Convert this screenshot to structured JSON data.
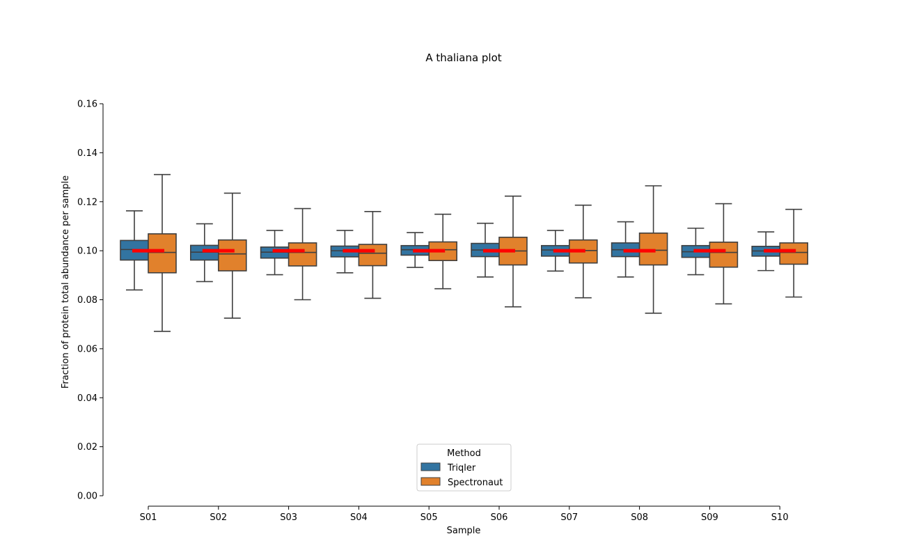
{
  "chart_data": {
    "type": "box",
    "title": "A thaliana plot",
    "xlabel": "Sample",
    "ylabel": "Fraction of protein total abundance per sample",
    "ylim": [
      0,
      0.16
    ],
    "yticks": [
      "0.00",
      "0.02",
      "0.04",
      "0.06",
      "0.08",
      "0.10",
      "0.12",
      "0.14",
      "0.16"
    ],
    "categories": [
      "S01",
      "S02",
      "S03",
      "S04",
      "S05",
      "S06",
      "S07",
      "S08",
      "S09",
      "S10"
    ],
    "legend": {
      "title": "Method",
      "placement": "bottom-center"
    },
    "reference_line": {
      "value": 0.1,
      "color": "#ff0000"
    },
    "series": [
      {
        "name": "Triqler",
        "color": "#3274a1",
        "boxes": [
          {
            "min": 0.084,
            "q1": 0.0962,
            "median": 0.1005,
            "q3": 0.1042,
            "max": 0.1163
          },
          {
            "min": 0.0874,
            "q1": 0.0962,
            "median": 0.0994,
            "q3": 0.1022,
            "max": 0.111
          },
          {
            "min": 0.0902,
            "q1": 0.097,
            "median": 0.0994,
            "q3": 0.1015,
            "max": 0.1083
          },
          {
            "min": 0.091,
            "q1": 0.0975,
            "median": 0.1,
            "q3": 0.1019,
            "max": 0.1083
          },
          {
            "min": 0.0932,
            "q1": 0.0982,
            "median": 0.1004,
            "q3": 0.1021,
            "max": 0.1074
          },
          {
            "min": 0.0893,
            "q1": 0.0976,
            "median": 0.1003,
            "q3": 0.103,
            "max": 0.1112
          },
          {
            "min": 0.0917,
            "q1": 0.0978,
            "median": 0.1003,
            "q3": 0.1021,
            "max": 0.1083
          },
          {
            "min": 0.0893,
            "q1": 0.0976,
            "median": 0.1004,
            "q3": 0.1032,
            "max": 0.1118
          },
          {
            "min": 0.0902,
            "q1": 0.0973,
            "median": 0.0996,
            "q3": 0.1021,
            "max": 0.1092
          },
          {
            "min": 0.0919,
            "q1": 0.0978,
            "median": 0.0999,
            "q3": 0.1018,
            "max": 0.1077
          }
        ]
      },
      {
        "name": "Spectronaut",
        "color": "#e1812c",
        "boxes": [
          {
            "min": 0.0671,
            "q1": 0.091,
            "median": 0.0993,
            "q3": 0.1069,
            "max": 0.1311
          },
          {
            "min": 0.0725,
            "q1": 0.0918,
            "median": 0.0987,
            "q3": 0.1044,
            "max": 0.1235
          },
          {
            "min": 0.08,
            "q1": 0.0938,
            "median": 0.0993,
            "q3": 0.1032,
            "max": 0.1172
          },
          {
            "min": 0.0806,
            "q1": 0.0939,
            "median": 0.099,
            "q3": 0.1026,
            "max": 0.116
          },
          {
            "min": 0.0845,
            "q1": 0.096,
            "median": 0.1004,
            "q3": 0.1036,
            "max": 0.1149
          },
          {
            "min": 0.0771,
            "q1": 0.0942,
            "median": 0.0999,
            "q3": 0.1055,
            "max": 0.1223
          },
          {
            "min": 0.0808,
            "q1": 0.095,
            "median": 0.1001,
            "q3": 0.1044,
            "max": 0.1186
          },
          {
            "min": 0.0745,
            "q1": 0.0942,
            "median": 0.1002,
            "q3": 0.1072,
            "max": 0.1265
          },
          {
            "min": 0.0783,
            "q1": 0.0933,
            "median": 0.0993,
            "q3": 0.1035,
            "max": 0.1192
          },
          {
            "min": 0.0811,
            "q1": 0.0945,
            "median": 0.0993,
            "q3": 0.1032,
            "max": 0.1169
          }
        ]
      }
    ]
  }
}
